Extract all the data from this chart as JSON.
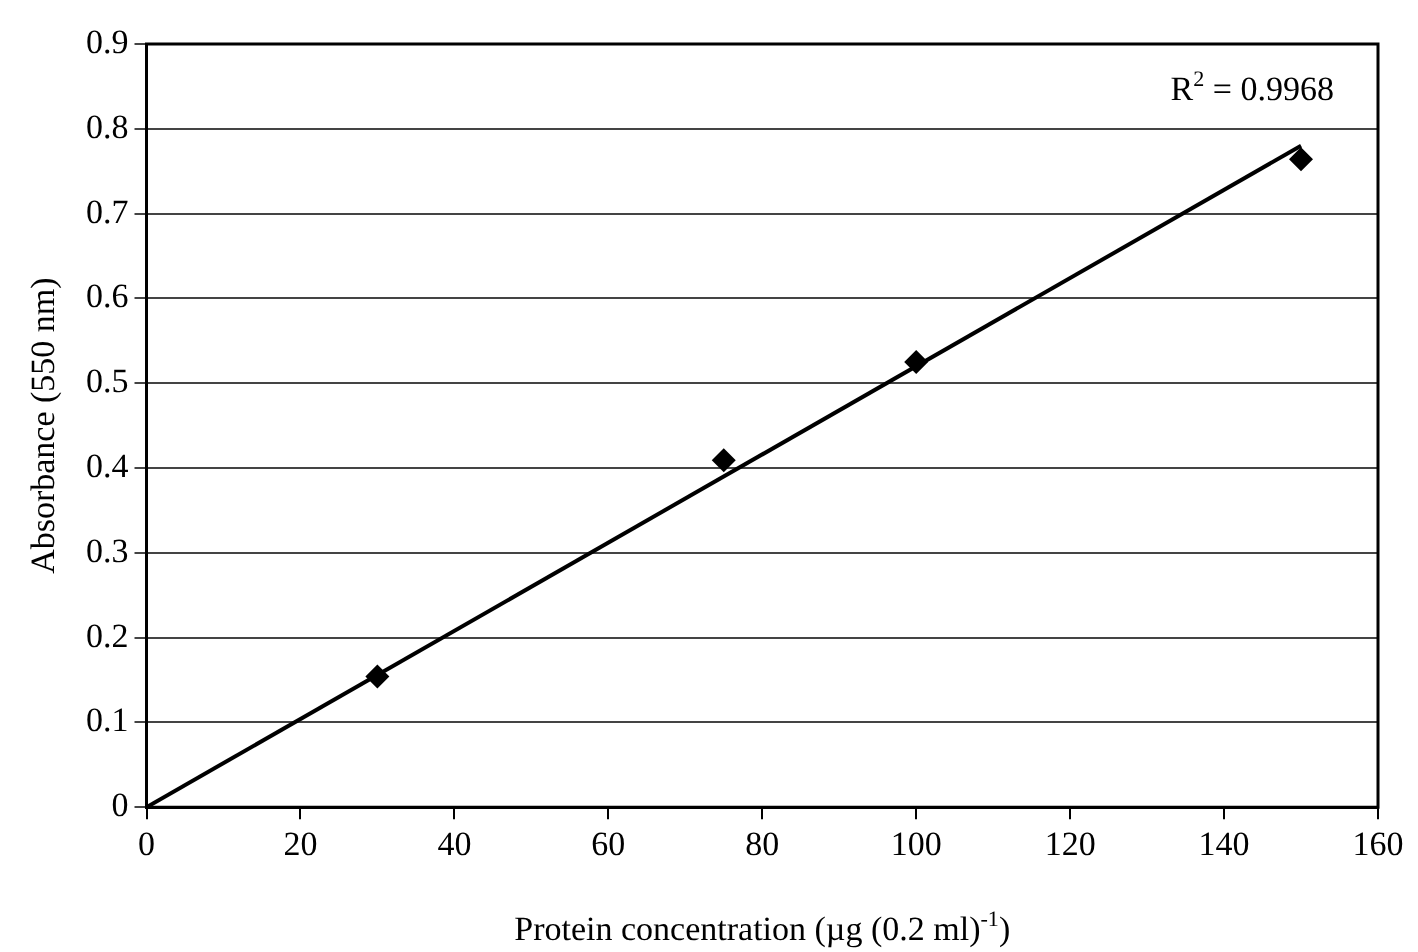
{
  "chart_data": {
    "type": "scatter",
    "xlabel": "Protein concentration (µg (0.2 ml)$^{-1}$)",
    "ylabel": "Absorbance (550 nm)",
    "series": [
      {
        "type": "scatter",
        "color": "#000000",
        "x": [
          30,
          75,
          100,
          150
        ],
        "values": [
          0.154,
          0.409,
          0.525,
          0.764
        ]
      },
      {
        "type": "line",
        "color": "#000000",
        "marker": "none",
        "x": [
          0,
          150
        ],
        "values": [
          0,
          0.78
        ]
      }
    ],
    "annotations": [
      "R$^{2}$ = 0.9968"
    ],
    "xlim": [
      0,
      160
    ],
    "xticks": [
      0,
      20,
      40,
      60,
      80,
      100,
      120,
      140,
      160
    ],
    "ylim": [
      0,
      0.9
    ],
    "yticks": [
      0,
      0.1,
      0.2,
      0.3,
      0.4,
      0.5,
      0.6,
      0.7,
      0.8,
      0.9
    ],
    "grid": "y",
    "marker": "diamond",
    "legend": false
  }
}
